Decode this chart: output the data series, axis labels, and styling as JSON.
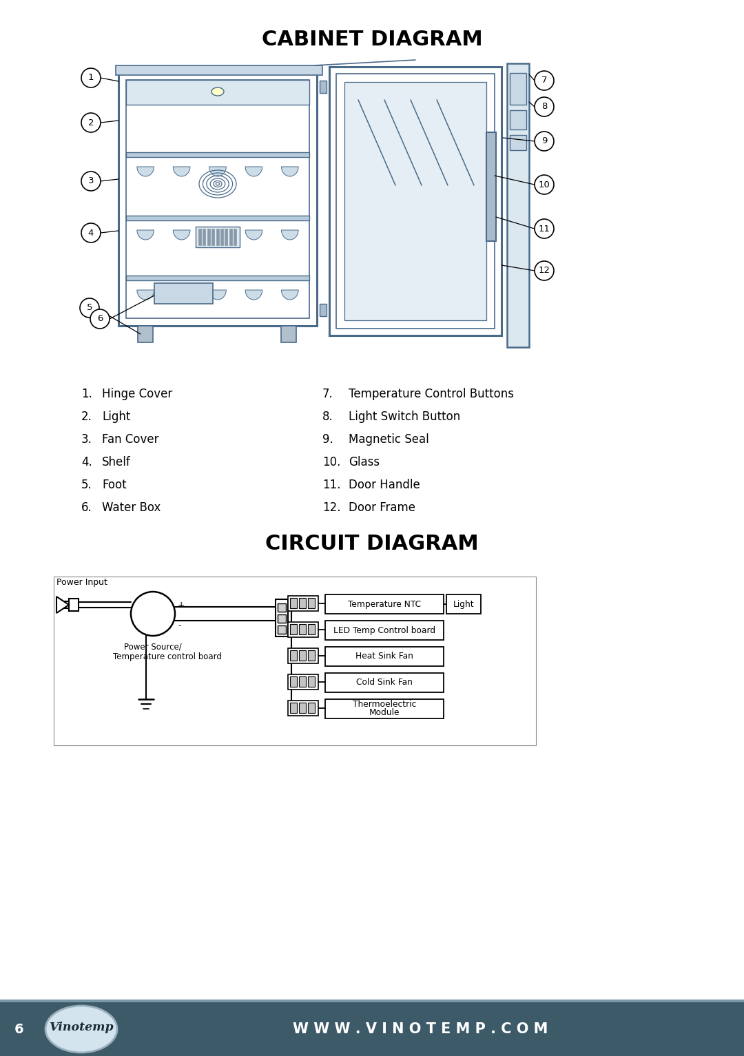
{
  "title1": "CABINET DIAGRAM",
  "title2": "CIRCUIT DIAGRAM",
  "bg_color": "#ffffff",
  "footer_bg": "#3d5a68",
  "footer_text": "W W W . V I N O T E M P . C O M",
  "page_num": "6",
  "line_color": "#4a6a8a",
  "cabinet_labels_left": [
    [
      1,
      "Hinge Cover"
    ],
    [
      2,
      "Light"
    ],
    [
      3,
      "Fan Cover"
    ],
    [
      4,
      "Shelf"
    ],
    [
      5,
      "Foot"
    ],
    [
      6,
      "Water Box"
    ]
  ],
  "cabinet_labels_right": [
    [
      7,
      "Temperature Control Buttons"
    ],
    [
      8,
      "Light Switch Button"
    ],
    [
      9,
      "Magnetic Seal"
    ],
    [
      10,
      "Glass"
    ],
    [
      11,
      "Door Handle"
    ],
    [
      12,
      "Door Frame"
    ]
  ],
  "circuit_components": [
    "Temperature NTC",
    "LED Temp Control board",
    "Heat Sink Fan",
    "Cold Sink Fan",
    "Thermoelectric\nModule"
  ]
}
